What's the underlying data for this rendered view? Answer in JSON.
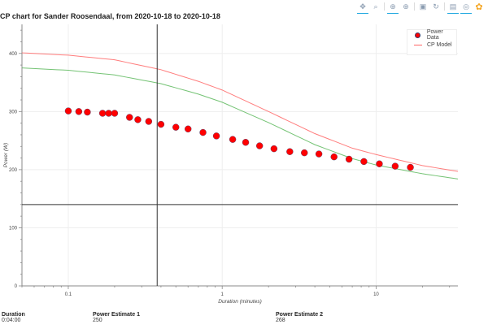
{
  "title": "CP chart for Sander Roosendaal, from 2020-10-18 to 2020-10-18",
  "toolbar": {
    "tools": [
      {
        "name": "pan-tool",
        "glyph": "✥",
        "active": true
      },
      {
        "name": "box-zoom-tool",
        "glyph": "⌕",
        "active": false
      },
      {
        "name": "wheel-zoom-tool",
        "glyph": "⊕",
        "active": true
      },
      {
        "name": "zoom-in-tool",
        "glyph": "⊕",
        "active": false
      },
      {
        "name": "save-tool",
        "glyph": "▣",
        "active": false
      },
      {
        "name": "reset-tool",
        "glyph": "↻",
        "active": false
      },
      {
        "name": "hover-tool",
        "glyph": "▤",
        "active": true
      },
      {
        "name": "crosshair-tool",
        "glyph": "◎",
        "active": true
      },
      {
        "name": "bokeh-logo",
        "glyph": "✿",
        "active": false
      }
    ]
  },
  "legend": {
    "items": [
      {
        "label": "Power Data",
        "color": "#ff0000",
        "type": "circle"
      },
      {
        "label": "CP Model",
        "color": "#ff6666",
        "type": "line"
      }
    ]
  },
  "readouts": {
    "duration": {
      "label": "Duration",
      "value": "0:04:00"
    },
    "estimate1": {
      "label": "Power Estimate 1",
      "value": "250"
    },
    "estimate2": {
      "label": "Power Estimate 2",
      "value": "268"
    }
  },
  "chart_data": {
    "type": "scatter",
    "title": "CP chart for Sander Roosendaal, from 2020-10-18 to 2020-10-18",
    "xlabel": "Duration (minutes)",
    "ylabel": "Power (W)",
    "xscale": "log",
    "xlim": [
      0.05,
      34
    ],
    "ylim": [
      0,
      450
    ],
    "x_ticks": [
      0.1,
      1,
      10
    ],
    "x_tick_labels": [
      "0.1",
      "1",
      "10"
    ],
    "y_ticks": [
      0,
      100,
      200,
      300,
      400
    ],
    "y_tick_labels": [
      "0",
      "100",
      "200",
      "300",
      "400"
    ],
    "grid": true,
    "legend_position": "top-right",
    "series": [
      {
        "name": "Power Data",
        "type": "scatter",
        "color": "#ff0000",
        "x": [
          0.1,
          0.117,
          0.133,
          0.167,
          0.183,
          0.2,
          0.25,
          0.283,
          0.333,
          0.4,
          0.5,
          0.6,
          0.75,
          0.917,
          1.17,
          1.42,
          1.75,
          2.17,
          2.75,
          3.42,
          4.25,
          5.33,
          6.67,
          8.33,
          10.5,
          13.3,
          16.7
        ],
        "y": [
          301,
          300,
          299,
          297,
          297,
          297,
          290,
          286,
          283,
          278,
          273,
          270,
          264,
          258,
          252,
          247,
          241,
          236,
          231,
          229,
          227,
          222,
          218,
          214,
          210,
          206,
          204
        ]
      },
      {
        "name": "CP Model",
        "type": "line",
        "color": "#ff6666",
        "x": [
          0.05,
          0.1,
          0.2,
          0.4,
          0.7,
          1,
          2,
          4,
          7,
          10,
          20,
          34
        ],
        "y": [
          401,
          397,
          389,
          372,
          352,
          337,
          300,
          262,
          237,
          226,
          207,
          197
        ]
      },
      {
        "name": "CP Model (fit 2)",
        "type": "line",
        "color": "#5cb85c",
        "x": [
          0.05,
          0.1,
          0.2,
          0.4,
          0.7,
          1,
          2,
          4,
          7,
          10,
          20,
          34
        ],
        "y": [
          375,
          371,
          363,
          348,
          330,
          316,
          281,
          243,
          219,
          208,
          193,
          184
        ]
      }
    ],
    "crosshair": {
      "x": 0.378,
      "y": 140
    }
  }
}
